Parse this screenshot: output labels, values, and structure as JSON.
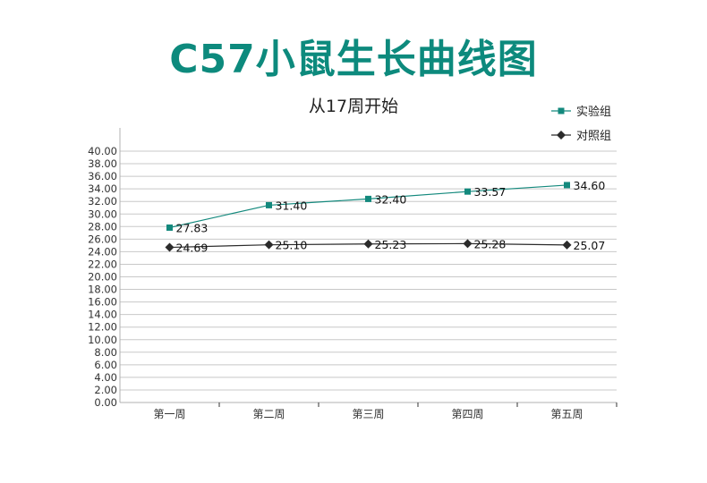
{
  "title": "C57小鼠生长曲线图",
  "colors": {
    "title": "#0d8a7d",
    "experimental": "#13897d",
    "control": "#2b2b2b",
    "grid": "#c8c8c8"
  },
  "chart_data": {
    "type": "line",
    "title": "C57小鼠生长曲线图",
    "subtitle": "从17周开始",
    "xlabel": "",
    "ylabel": "",
    "categories": [
      "第一周",
      "第二周",
      "第三周",
      "第四周",
      "第五周"
    ],
    "series": [
      {
        "name": "实验组",
        "marker": "square",
        "color": "#13897d",
        "values": [
          27.83,
          31.4,
          32.4,
          33.57,
          34.6
        ],
        "labels": [
          "27.83",
          "31.40",
          "32.40",
          "33.57",
          "34.60"
        ]
      },
      {
        "name": "对照组",
        "marker": "diamond",
        "color": "#2b2b2b",
        "values": [
          24.69,
          25.1,
          25.23,
          25.28,
          25.07
        ],
        "labels": [
          "24.69",
          "25.10",
          "25.23",
          "25.28",
          "25.07"
        ]
      }
    ],
    "ylim": [
      0,
      40
    ],
    "ytick_step": 2,
    "ytick_labels": [
      "0.00",
      "2.00",
      "4.00",
      "6.00",
      "8.00",
      "10.00",
      "12.00",
      "14.00",
      "16.00",
      "18.00",
      "20.00",
      "22.00",
      "24.00",
      "26.00",
      "28.00",
      "30.00",
      "32.00",
      "34.00",
      "36.00",
      "38.00",
      "40.00"
    ],
    "grid": true,
    "legend_position": "top-right"
  }
}
